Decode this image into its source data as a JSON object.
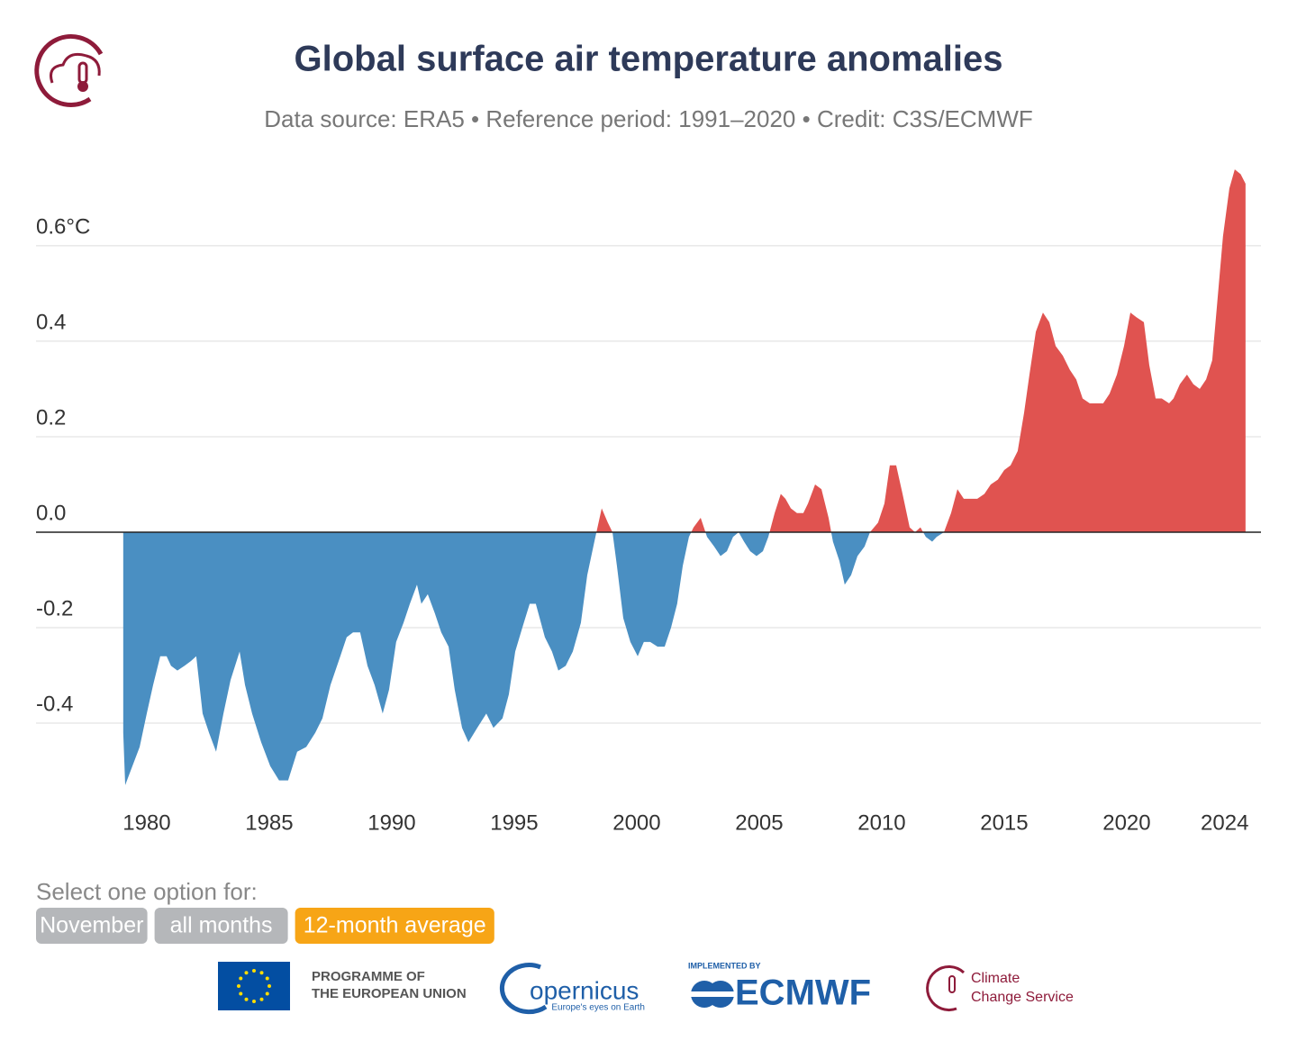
{
  "chart_data": {
    "type": "area",
    "title": "Global surface air temperature anomalies",
    "subtitle": "Data source: ERA5 • Reference period: 1991–2020 • Credit: C3S/ECMWF",
    "x": [
      1979.04,
      1979.12,
      1979.34,
      1979.71,
      1980.0,
      1980.26,
      1980.55,
      1980.81,
      1980.99,
      1981.25,
      1981.54,
      1981.8,
      1982.02,
      1982.28,
      1982.54,
      1982.83,
      1983.13,
      1983.42,
      1983.79,
      1984.01,
      1984.3,
      1984.67,
      1985.04,
      1985.4,
      1985.77,
      1986.14,
      1986.51,
      1986.88,
      1987.17,
      1987.5,
      1987.9,
      1988.16,
      1988.42,
      1988.71,
      1989.01,
      1989.3,
      1989.63,
      1989.89,
      1990.18,
      1990.48,
      1990.74,
      1991.03,
      1991.21,
      1991.47,
      1991.76,
      1992.02,
      1992.32,
      1992.57,
      1992.87,
      1993.13,
      1993.49,
      1993.86,
      1994.15,
      1994.52,
      1994.78,
      1995.04,
      1995.33,
      1995.63,
      1995.88,
      1996.25,
      1996.54,
      1996.8,
      1997.1,
      1997.39,
      1997.72,
      1997.98,
      1998.27,
      1998.57,
      1998.82,
      1999.01,
      1999.19,
      1999.45,
      1999.74,
      2000.04,
      2000.29,
      2000.55,
      2000.85,
      2001.14,
      2001.4,
      2001.65,
      2001.88,
      2002.13,
      2002.32,
      2002.61,
      2002.87,
      2003.16,
      2003.42,
      2003.68,
      2003.93,
      2004.16,
      2004.38,
      2004.63,
      2004.89,
      2005.15,
      2005.37,
      2005.63,
      2005.88,
      2006.07,
      2006.29,
      2006.54,
      2006.8,
      2006.99,
      2007.28,
      2007.54,
      2007.83,
      2008.01,
      2008.27,
      2008.49,
      2008.75,
      2009.01,
      2009.3,
      2009.52,
      2009.85,
      2010.11,
      2010.33,
      2010.59,
      2010.85,
      2011.14,
      2011.36,
      2011.58,
      2011.8,
      2012.06,
      2012.24,
      2012.54,
      2012.83,
      2013.09,
      2013.35,
      2013.64,
      2013.9,
      2014.19,
      2014.45,
      2014.74,
      2015.0,
      2015.26,
      2015.55,
      2015.81,
      2016.03,
      2016.29,
      2016.58,
      2016.84,
      2017.1,
      2017.39,
      2017.68,
      2017.94,
      2018.2,
      2018.49,
      2018.79,
      2019.04,
      2019.3,
      2019.6,
      2019.89,
      2020.15,
      2020.4,
      2020.7,
      2020.92,
      2021.18,
      2021.43,
      2021.73,
      2021.91,
      2022.17,
      2022.46,
      2022.72,
      2022.98,
      2023.24,
      2023.49,
      2023.71,
      2023.93,
      2024.19,
      2024.41,
      2024.65,
      2024.85
    ],
    "values": [
      -0.42,
      -0.53,
      -0.5,
      -0.45,
      -0.38,
      -0.32,
      -0.26,
      -0.26,
      -0.28,
      -0.29,
      -0.28,
      -0.27,
      -0.26,
      -0.38,
      -0.42,
      -0.46,
      -0.38,
      -0.31,
      -0.25,
      -0.32,
      -0.38,
      -0.44,
      -0.49,
      -0.52,
      -0.52,
      -0.46,
      -0.45,
      -0.42,
      -0.39,
      -0.32,
      -0.26,
      -0.22,
      -0.21,
      -0.21,
      -0.28,
      -0.32,
      -0.38,
      -0.33,
      -0.23,
      -0.19,
      -0.15,
      -0.11,
      -0.15,
      -0.13,
      -0.17,
      -0.21,
      -0.24,
      -0.33,
      -0.41,
      -0.44,
      -0.41,
      -0.38,
      -0.41,
      -0.39,
      -0.34,
      -0.25,
      -0.2,
      -0.15,
      -0.15,
      -0.22,
      -0.25,
      -0.29,
      -0.28,
      -0.25,
      -0.19,
      -0.09,
      -0.02,
      0.05,
      0.02,
      0.0,
      -0.07,
      -0.18,
      -0.23,
      -0.26,
      -0.23,
      -0.23,
      -0.24,
      -0.24,
      -0.2,
      -0.15,
      -0.07,
      -0.01,
      0.01,
      0.03,
      -0.01,
      -0.03,
      -0.05,
      -0.04,
      -0.01,
      0.0,
      -0.02,
      -0.04,
      -0.05,
      -0.04,
      -0.01,
      0.04,
      0.08,
      0.07,
      0.05,
      0.04,
      0.04,
      0.06,
      0.1,
      0.09,
      0.03,
      -0.02,
      -0.06,
      -0.11,
      -0.09,
      -0.05,
      -0.03,
      0.0,
      0.02,
      0.06,
      0.14,
      0.14,
      0.08,
      0.01,
      0.0,
      0.01,
      -0.01,
      -0.02,
      -0.01,
      0.0,
      0.04,
      0.09,
      0.07,
      0.07,
      0.07,
      0.08,
      0.1,
      0.11,
      0.13,
      0.14,
      0.17,
      0.25,
      0.33,
      0.42,
      0.46,
      0.44,
      0.39,
      0.37,
      0.34,
      0.32,
      0.28,
      0.27,
      0.27,
      0.27,
      0.29,
      0.33,
      0.39,
      0.46,
      0.45,
      0.44,
      0.35,
      0.28,
      0.28,
      0.27,
      0.28,
      0.31,
      0.33,
      0.31,
      0.3,
      0.32,
      0.36,
      0.49,
      0.62,
      0.72,
      0.76,
      0.75,
      0.73
    ],
    "positive_color": "#e05350",
    "negative_color": "#4a8fc2",
    "xlim": [
      1975.48,
      2025.48
    ],
    "ylim": [
      -0.55,
      0.78
    ],
    "xticks": [
      1980,
      1985,
      1990,
      1995,
      2000,
      2005,
      2010,
      2015,
      2020,
      2024
    ],
    "yticks": [
      -0.4,
      -0.2,
      {
        "value": 0,
        "label": "0.0"
      },
      0.2,
      0.4,
      {
        "value": 0.6,
        "label": "0.6°C"
      }
    ],
    "grid": true
  },
  "controls": {
    "prompt": "Select one option for:",
    "options": [
      "November",
      "all months",
      "12-month average"
    ],
    "selected": "12-month average"
  },
  "footer": {
    "eu": [
      "PROGRAMME OF",
      "THE EUROPEAN UNION"
    ],
    "copernicus": [
      "opernicus",
      "Europe's eyes on Earth"
    ],
    "ecmwf": [
      "IMPLEMENTED BY",
      "ECMWF"
    ],
    "c3s": [
      "Climate",
      "Change Service"
    ]
  }
}
